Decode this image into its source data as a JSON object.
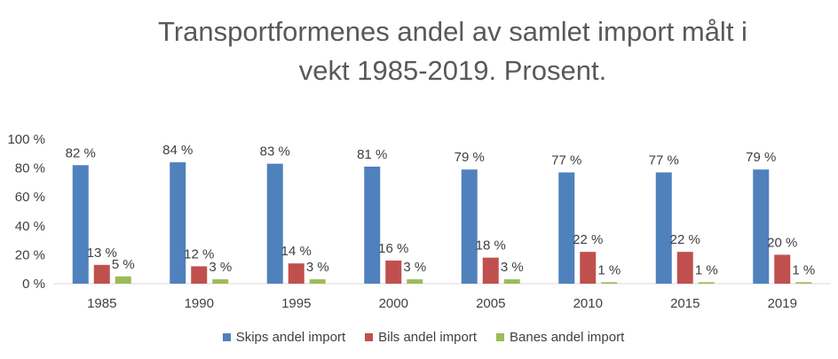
{
  "chart_data": {
    "type": "bar",
    "title": "Transportformenes andel av samlet import målt i vekt 1985-2019. Prosent.",
    "title_lines": [
      "Transportformenes andel av samlet import målt i",
      "vekt 1985-2019. Prosent."
    ],
    "categories": [
      "1985",
      "1990",
      "1995",
      "2000",
      "2005",
      "2010",
      "2015",
      "2019"
    ],
    "series": [
      {
        "name": "Skips andel import",
        "color": "#4F81BD",
        "values": [
          82,
          84,
          83,
          81,
          79,
          77,
          77,
          79
        ],
        "labels": [
          "82 %",
          "84 %",
          "83 %",
          "81 %",
          "79 %",
          "77 %",
          "77 %",
          "79 %"
        ]
      },
      {
        "name": "Bils andel import",
        "color": "#C0504D",
        "values": [
          13,
          12,
          14,
          16,
          18,
          22,
          22,
          20
        ],
        "labels": [
          "13 %",
          "12 %",
          "14 %",
          "16 %",
          "18 %",
          "22 %",
          "22 %",
          "20 %"
        ]
      },
      {
        "name": "Banes andel import",
        "color": "#9BBB59",
        "values": [
          5,
          3,
          3,
          3,
          3,
          1,
          1,
          1
        ],
        "labels": [
          "5 %",
          "3 %",
          "3 %",
          "3 %",
          "3 %",
          "1 %",
          "1 %",
          "1 %"
        ]
      }
    ],
    "yticks": [
      "0 %",
      "20 %",
      "40 %",
      "60 %",
      "80 %",
      "100 %"
    ],
    "ylim": [
      0,
      100
    ],
    "grid": false,
    "legend_position": "bottom"
  }
}
